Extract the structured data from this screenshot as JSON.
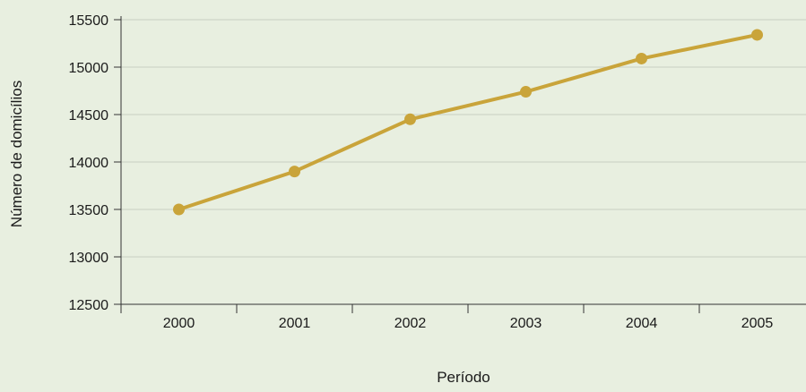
{
  "chart_data": {
    "type": "line",
    "title": "",
    "xlabel": "Período",
    "ylabel": "Número de domicílios",
    "categories": [
      "2000",
      "2001",
      "2002",
      "2003",
      "2004",
      "2005"
    ],
    "series": [
      {
        "values": [
          13500,
          13900,
          14450,
          14740,
          15090,
          15340
        ]
      }
    ],
    "ylim": [
      12500,
      15500
    ],
    "yticks": [
      "12500",
      "13000",
      "13500",
      "14000",
      "14500",
      "15000",
      "15500"
    ],
    "grid": true,
    "colors": {
      "background": "#e8efe0",
      "line": "#c9a43a",
      "grid": "#c9cfc2",
      "axis": "#333333"
    }
  }
}
